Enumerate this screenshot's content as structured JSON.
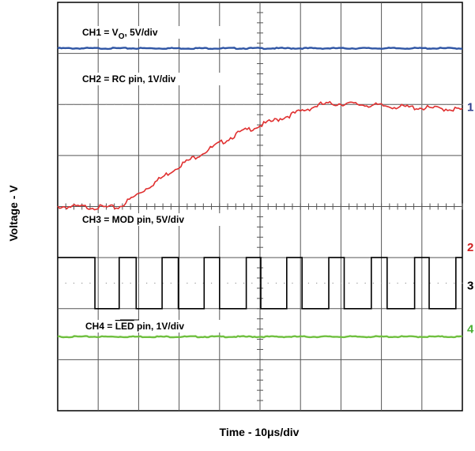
{
  "chart_data": {
    "type": "line",
    "xlabel": "Time - 10μs/div",
    "ylabel": "Voltage - V",
    "grid": true,
    "xlim": [
      0,
      10
    ],
    "ylim": [
      0,
      8
    ],
    "series": [
      {
        "name": "CH1",
        "color": "#2f55a4",
        "x": [
          0,
          10
        ],
        "y": [
          7.1,
          7.1
        ]
      },
      {
        "name": "CH2",
        "color": "#e03030",
        "x": [
          0,
          1.5,
          3,
          4.5,
          6.5,
          7,
          8.5,
          10
        ],
        "y": [
          4.0,
          3.98,
          4.8,
          5.45,
          6.0,
          6.02,
          5.95,
          5.9
        ]
      },
      {
        "name": "CH3",
        "color": "#000000",
        "type": "square-wave",
        "high": 3.0,
        "low": 2.0,
        "rising_edges": [
          0.46,
          1.52,
          2.58,
          3.62,
          4.66,
          5.66,
          6.7,
          7.75,
          8.82,
          9.84
        ],
        "falling_edges": [
          0.92,
          1.94,
          2.98,
          4.0,
          5.02,
          6.04,
          7.08,
          8.14,
          9.18
        ]
      },
      {
        "name": "CH4",
        "color": "#70c040",
        "x": [
          0,
          10
        ],
        "y": [
          1.45,
          1.45
        ]
      }
    ],
    "annotations": {
      "ch1": {
        "pre": "CH1 = V",
        "sub": "O",
        "post": ", 5V/div"
      },
      "ch2": "CH2 = RC pin, 1V/div",
      "ch3": "CH3 = MOD pin, 5V/div",
      "ch4": {
        "pre": "CH4 = ",
        "overline": "LED",
        "post": " pin, 1V/div"
      }
    },
    "markers": [
      {
        "text": "1",
        "color": "#2f3f8f",
        "y": 5.95
      },
      {
        "text": "2",
        "color": "#d02020",
        "y": 3.2
      },
      {
        "text": "3",
        "color": "#000000",
        "y": 2.45
      },
      {
        "text": "4",
        "color": "#4caf35",
        "y": 1.6
      }
    ]
  }
}
